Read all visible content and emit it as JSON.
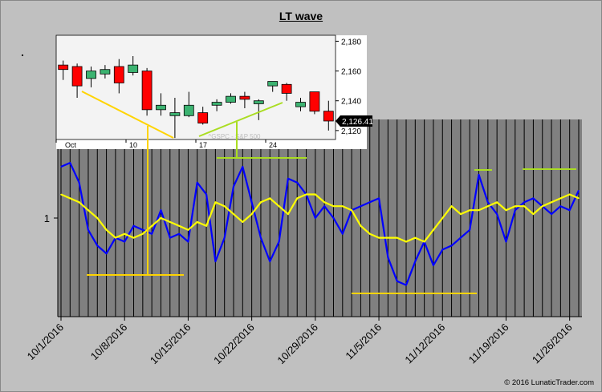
{
  "chart_data": {
    "title": "LT wave",
    "type": "line",
    "x_tick_labels": [
      "10/1/2016",
      "10/8/2016",
      "10/15/2016",
      "10/22/2016",
      "10/29/2016",
      "11/5/2016",
      "11/12/2016",
      "11/19/2016",
      "11/26/2016"
    ],
    "y_tick_labels": [
      "1"
    ],
    "ylim": [
      0.75,
      1.25
    ],
    "series": [
      {
        "name": "blue wave",
        "color": "#0000ff",
        "values": [
          1.13,
          1.14,
          1.09,
          0.97,
          0.93,
          0.91,
          0.95,
          0.94,
          0.98,
          0.97,
          0.96,
          1.02,
          0.95,
          0.96,
          0.94,
          1.09,
          1.06,
          0.89,
          0.95,
          1.08,
          1.13,
          1.04,
          0.95,
          0.89,
          0.94,
          1.1,
          1.09,
          1.06,
          1.0,
          1.03,
          1.0,
          0.96,
          1.02,
          1.03,
          1.04,
          1.05,
          0.9,
          0.84,
          0.83,
          0.89,
          0.94,
          0.88,
          0.92,
          0.93,
          0.95,
          0.97,
          1.11,
          1.04,
          1.01,
          0.94,
          1.02,
          1.04,
          1.05,
          1.03,
          1.01,
          1.03,
          1.02,
          1.07
        ]
      },
      {
        "name": "yellow wave",
        "color": "#ffff00",
        "values": [
          1.06,
          1.05,
          1.04,
          1.02,
          1.0,
          0.97,
          0.95,
          0.96,
          0.95,
          0.96,
          0.98,
          1.0,
          0.99,
          0.98,
          0.97,
          0.99,
          0.98,
          1.04,
          1.03,
          1.01,
          0.99,
          1.01,
          1.04,
          1.05,
          1.03,
          1.01,
          1.05,
          1.06,
          1.06,
          1.04,
          1.03,
          1.03,
          1.02,
          0.98,
          0.96,
          0.95,
          0.95,
          0.95,
          0.94,
          0.95,
          0.94,
          0.97,
          1.0,
          1.03,
          1.01,
          1.02,
          1.02,
          1.03,
          1.04,
          1.02,
          1.03,
          1.03,
          1.01,
          1.03,
          1.04,
          1.05,
          1.06,
          1.05
        ]
      }
    ],
    "inset": {
      "type": "candlestick",
      "symbol_label": "^GSPC - S&P 500",
      "last_price_label": "2,126.41",
      "x_tick_labels": [
        "Oct",
        "10",
        "17",
        "24"
      ],
      "y_tick_labels": [
        "2,180",
        "2,160",
        "2,140",
        "2,120"
      ],
      "ylim": [
        2114,
        2184
      ],
      "candles": [
        {
          "o": 2164,
          "h": 2167,
          "l": 2154,
          "c": 2161
        },
        {
          "o": 2163,
          "h": 2165,
          "l": 2142,
          "c": 2150
        },
        {
          "o": 2155,
          "h": 2163,
          "l": 2149,
          "c": 2160
        },
        {
          "o": 2158,
          "h": 2164,
          "l": 2155,
          "c": 2161
        },
        {
          "o": 2163,
          "h": 2168,
          "l": 2145,
          "c": 2152
        },
        {
          "o": 2159,
          "h": 2170,
          "l": 2157,
          "c": 2164
        },
        {
          "o": 2160,
          "h": 2162,
          "l": 2130,
          "c": 2134
        },
        {
          "o": 2134,
          "h": 2145,
          "l": 2130,
          "c": 2137
        },
        {
          "o": 2130,
          "h": 2142,
          "l": 2115,
          "c": 2132
        },
        {
          "o": 2130,
          "h": 2146,
          "l": 2129,
          "c": 2137
        },
        {
          "o": 2132,
          "h": 2136,
          "l": 2124,
          "c": 2125
        },
        {
          "o": 2137,
          "h": 2141,
          "l": 2133,
          "c": 2139
        },
        {
          "o": 2139,
          "h": 2145,
          "l": 2138,
          "c": 2143
        },
        {
          "o": 2143,
          "h": 2146,
          "l": 2135,
          "c": 2141
        },
        {
          "o": 2138,
          "h": 2141,
          "l": 2127,
          "c": 2140
        },
        {
          "o": 2150,
          "h": 2153,
          "l": 2146,
          "c": 2153
        },
        {
          "o": 2151,
          "h": 2152,
          "l": 2140,
          "c": 2145
        },
        {
          "o": 2136,
          "h": 2142,
          "l": 2133,
          "c": 2139
        },
        {
          "o": 2146,
          "h": 2146,
          "l": 2131,
          "c": 2133
        },
        {
          "o": 2133,
          "h": 2140,
          "l": 2120,
          "c": 2126.41
        }
      ]
    }
  },
  "footer": {
    "copyright": "© 2016 LunaticTrader.com"
  }
}
